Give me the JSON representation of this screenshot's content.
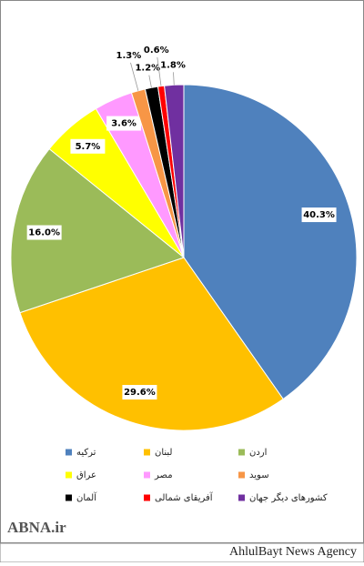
{
  "chart_data": {
    "type": "pie",
    "categories": [
      "ترکیه",
      "لبنان",
      "اردن",
      "عراق",
      "مصر",
      "سوید",
      "آلمان",
      "آفریقای شمالی",
      "کشورهای دیگر جهان"
    ],
    "values": [
      40.3,
      29.6,
      16.0,
      5.7,
      3.6,
      1.3,
      1.2,
      0.6,
      1.8
    ],
    "value_labels": [
      "40.3%",
      "29.6%",
      "16.0%",
      "5.7%",
      "3.6%",
      "1.3%",
      "1.2%",
      "0.6%",
      "1.8%"
    ],
    "colors": [
      "#4f81bd",
      "#ffc000",
      "#9bbb59",
      "#ffff00",
      "#ff99ff",
      "#f79646",
      "#000000",
      "#ff0000",
      "#7030a0"
    ],
    "legend": "bottom"
  },
  "watermark": "ABNA.ir",
  "footer": "AhlulBayt News Agency"
}
